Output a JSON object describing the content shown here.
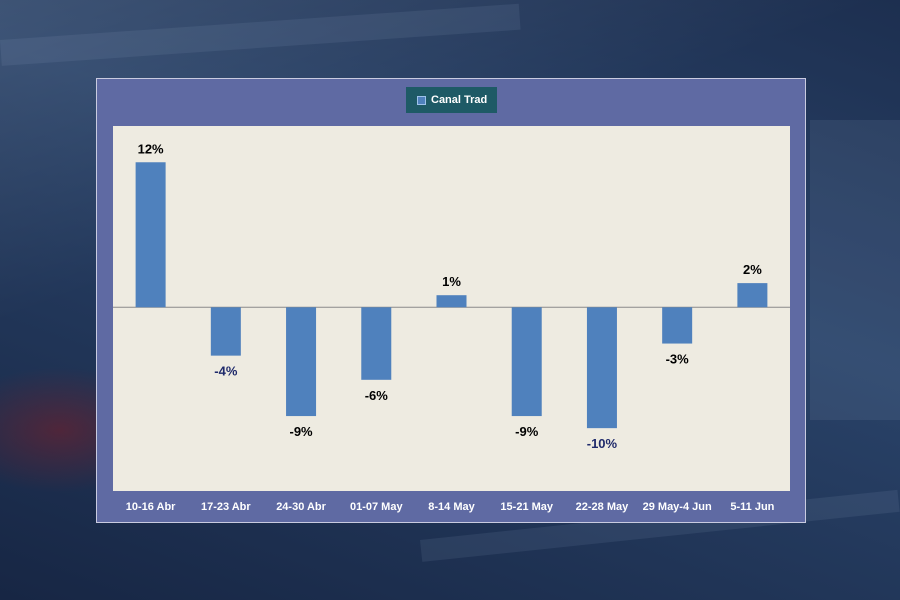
{
  "colors": {
    "panel": "#5f6aa3",
    "plot_area": "#eeebe1",
    "bar": "#4f81bd",
    "legend_bg": "#1e5a66",
    "label_default": "#000000",
    "label_dark_blue": "#1f2a6b",
    "tick_label": "#ffffff"
  },
  "chart_data": {
    "type": "bar",
    "categories": [
      "10-16 Abr",
      "17-23 Abr",
      "24-30 Abr",
      "01-07 May",
      "8-14 May",
      "15-21 May",
      "22-28 May",
      "29 May-4 Jun",
      "5-11 Jun"
    ],
    "series": [
      {
        "name": "Canal Trad",
        "values": [
          12,
          -4,
          -9,
          -6,
          1,
          -9,
          -10,
          -3,
          2
        ]
      }
    ],
    "data_labels": [
      "12%",
      "-4%",
      "-9%",
      "-6%",
      "1%",
      "-9%",
      "-10%",
      "-3%",
      "2%"
    ],
    "data_label_colors": [
      "#000000",
      "#1f2a6b",
      "#000000",
      "#000000",
      "#000000",
      "#000000",
      "#1f2a6b",
      "#000000",
      "#000000"
    ],
    "unit": "%",
    "ylim": [
      -15.2,
      15.0
    ],
    "legend": "top-center",
    "grid": false
  }
}
